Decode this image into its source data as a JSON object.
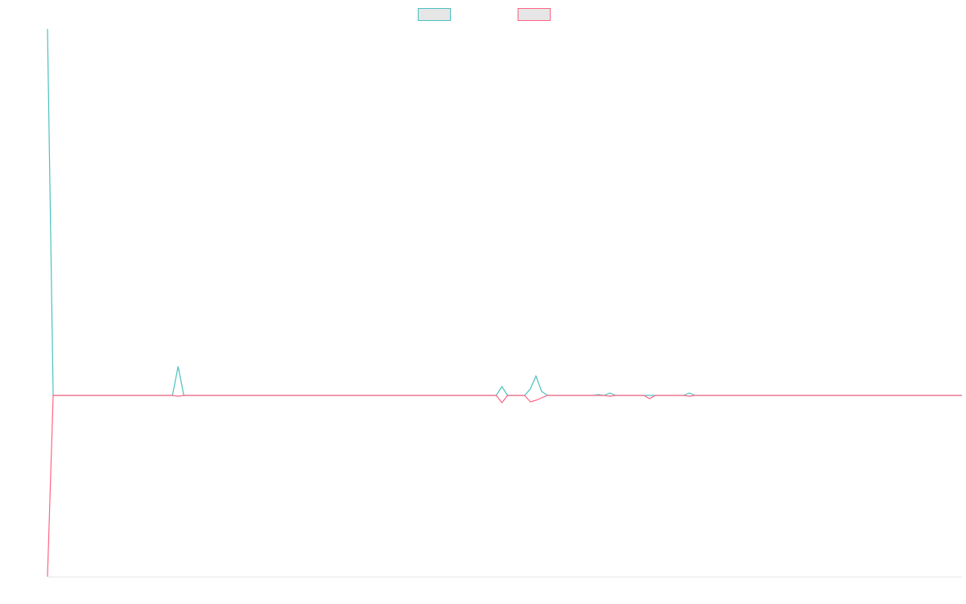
{
  "chart_data": {
    "type": "line",
    "categories": [
      null,
      null,
      null,
      null,
      null,
      null,
      null,
      null,
      null,
      null,
      null,
      null,
      null,
      null,
      null,
      null,
      null,
      null,
      null,
      null,
      null,
      null,
      null,
      null,
      null,
      null,
      null,
      null,
      null,
      null,
      null,
      null,
      null,
      null,
      null,
      null,
      null,
      null,
      null,
      null,
      null,
      null,
      null,
      null,
      null,
      null,
      null,
      null,
      null,
      null,
      null,
      null,
      null,
      null,
      null,
      null,
      null,
      null,
      null,
      null,
      null,
      null,
      null,
      null,
      null,
      null,
      null,
      null,
      null,
      null,
      null,
      null,
      null,
      null,
      null,
      null,
      null,
      null,
      null,
      null,
      null,
      null,
      null,
      null,
      null,
      null,
      null,
      null,
      null,
      null,
      null,
      null,
      null,
      null,
      null,
      null,
      null,
      null,
      null,
      null,
      null,
      null,
      null,
      null,
      null,
      null,
      null,
      null,
      null,
      null,
      null,
      null,
      null,
      null,
      null,
      null,
      null,
      null,
      null,
      null,
      null,
      null,
      null,
      null,
      null,
      null,
      null,
      null,
      null,
      null,
      null,
      null,
      null,
      null,
      null,
      null,
      null,
      null,
      null,
      null,
      null,
      null,
      null,
      null,
      null,
      null,
      null,
      null,
      null,
      null,
      null,
      null,
      null,
      null,
      null,
      null,
      null,
      null,
      null,
      null,
      null,
      null
    ],
    "series": [
      {
        "color": "#4bc0c0",
        "values": [
          455,
          0,
          0,
          0,
          0,
          0,
          0,
          0,
          0,
          0,
          0,
          0,
          0,
          0,
          0,
          0,
          0,
          0,
          0,
          0,
          0,
          0,
          0,
          36,
          0,
          0,
          0,
          0,
          0,
          0,
          0,
          0,
          0,
          0,
          0,
          0,
          0,
          0,
          0,
          0,
          0,
          0,
          0,
          0,
          0,
          0,
          0,
          0,
          0,
          0,
          0,
          0,
          0,
          0,
          0,
          0,
          0,
          0,
          0,
          0,
          0,
          0,
          0,
          0,
          0,
          0,
          0,
          0,
          0,
          0,
          0,
          0,
          0,
          0,
          0,
          0,
          0,
          0,
          0,
          0,
          11,
          0,
          0,
          0,
          0,
          8,
          24,
          5,
          0,
          0,
          0,
          0,
          0,
          0,
          0,
          0,
          0,
          1,
          0,
          3,
          0,
          0,
          0,
          0,
          0,
          0,
          0,
          0,
          0,
          0,
          0,
          0,
          0,
          3,
          0,
          0,
          0,
          0,
          0,
          0,
          0,
          0,
          0,
          0,
          0,
          0,
          0,
          0,
          0,
          0,
          0,
          0,
          0,
          0,
          0,
          0,
          0,
          0,
          0,
          0,
          0,
          0,
          0,
          0,
          0,
          0,
          0,
          0,
          0,
          0,
          0,
          0,
          0,
          0,
          0,
          0,
          0,
          0,
          0,
          0,
          0,
          0
        ]
      },
      {
        "color": "#ff6384",
        "values": [
          -225,
          0,
          0,
          0,
          0,
          0,
          0,
          0,
          0,
          0,
          0,
          0,
          0,
          0,
          0,
          0,
          0,
          0,
          0,
          0,
          0,
          0,
          0,
          -1,
          0,
          0,
          0,
          0,
          0,
          0,
          0,
          0,
          0,
          0,
          0,
          0,
          0,
          0,
          0,
          0,
          0,
          0,
          0,
          0,
          0,
          0,
          0,
          0,
          0,
          0,
          0,
          0,
          0,
          0,
          0,
          0,
          0,
          0,
          0,
          0,
          0,
          0,
          0,
          0,
          0,
          0,
          0,
          0,
          0,
          0,
          0,
          0,
          0,
          0,
          0,
          0,
          0,
          0,
          0,
          0,
          -9,
          0,
          0,
          0,
          0,
          -8,
          -6,
          -3,
          0,
          0,
          0,
          0,
          0,
          0,
          0,
          0,
          0,
          0,
          0,
          -1,
          0,
          0,
          0,
          0,
          0,
          0,
          -4,
          0,
          0,
          0,
          0,
          0,
          0,
          -1,
          0,
          0,
          0,
          0,
          0,
          0,
          0,
          0,
          0,
          0,
          0,
          0,
          0,
          0,
          0,
          0,
          0,
          0,
          0,
          0,
          0,
          0,
          0,
          0,
          0,
          0,
          0,
          0,
          0,
          0,
          0,
          0,
          0,
          0,
          0,
          0,
          0,
          0,
          0,
          0,
          0,
          0,
          0,
          0,
          0,
          0,
          0,
          0
        ]
      }
    ],
    "ylim": [
      -225,
      455
    ],
    "legend": "top"
  }
}
